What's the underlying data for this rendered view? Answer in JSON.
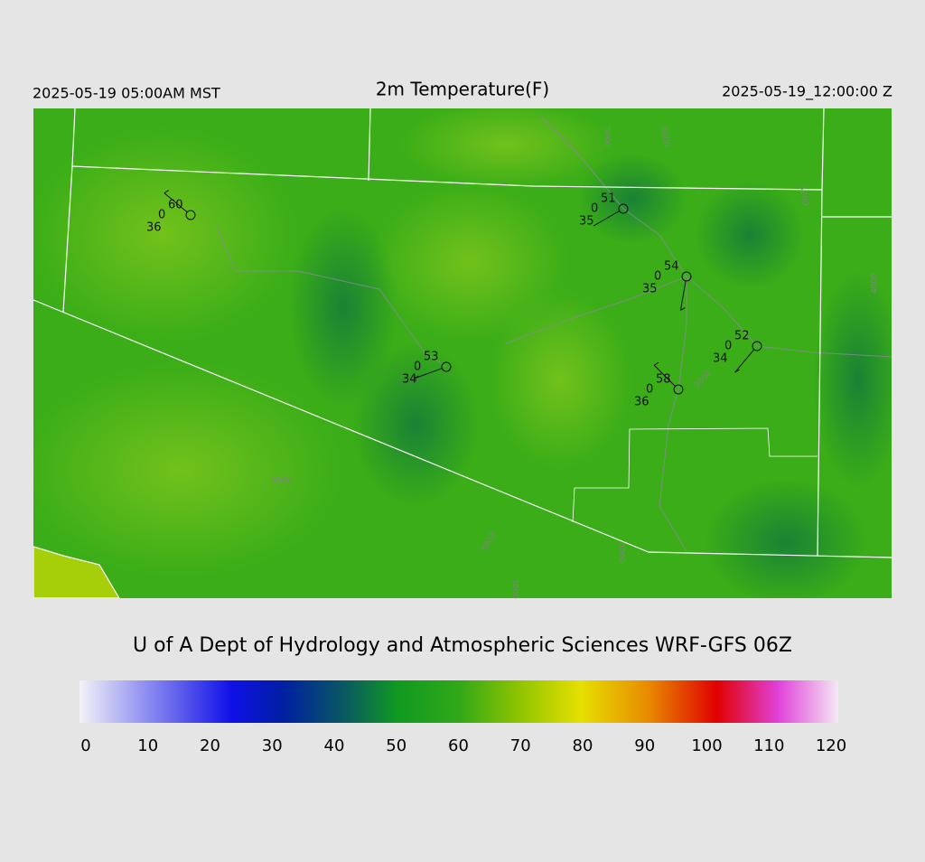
{
  "header": {
    "left": "2025-05-19 05:00AM MST",
    "title": "2m Temperature(F)",
    "right": "2025-05-19_12:00:00 Z"
  },
  "stations": [
    {
      "temperature": "60",
      "cloud": "0",
      "dewpoint": "36"
    },
    {
      "temperature": "51",
      "cloud": "0",
      "dewpoint": "35"
    },
    {
      "temperature": "54",
      "cloud": "0",
      "dewpoint": "35"
    },
    {
      "temperature": "52",
      "cloud": "0",
      "dewpoint": "34"
    },
    {
      "temperature": "53",
      "cloud": "0",
      "dewpoint": "34"
    },
    {
      "temperature": "58",
      "cloud": "0",
      "dewpoint": "36"
    }
  ],
  "contour_labels": [
    "3000",
    "3000",
    "3000",
    "3000",
    "3000",
    "4000",
    "3000",
    "5000",
    "5000"
  ],
  "footer": "U of A Dept of Hydrology and Atmospheric Sciences WRF-GFS 06Z",
  "colorbar": {
    "ticks": [
      "0",
      "10",
      "20",
      "30",
      "40",
      "50",
      "60",
      "70",
      "80",
      "90",
      "100",
      "110",
      "120"
    ]
  }
}
